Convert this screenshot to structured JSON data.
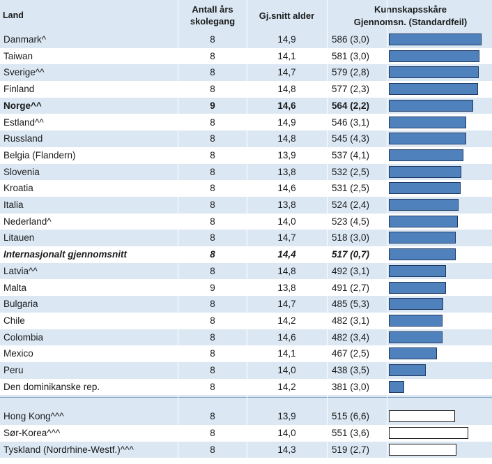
{
  "header": {
    "country": "Land",
    "years": "Antall års skolegang",
    "age": "Gj.snitt alder",
    "score_line1": "Kunnskapsskåre",
    "score_line2": "Gjennomsn. (Standardfeil)"
  },
  "chart_data": {
    "type": "table",
    "bar_scale_min": 340,
    "bar_scale_max": 595,
    "rows": [
      {
        "country": "Danmark^",
        "years": "8",
        "age": "14,9",
        "score": "586 (3,0)",
        "value": 586,
        "style": "normal",
        "bar": "filled"
      },
      {
        "country": "Taiwan",
        "years": "8",
        "age": "14,1",
        "score": "581 (3,0)",
        "value": 581,
        "style": "normal",
        "bar": "filled"
      },
      {
        "country": "Sverige^^",
        "years": "8",
        "age": "14,7",
        "score": "579 (2,8)",
        "value": 579,
        "style": "normal",
        "bar": "filled"
      },
      {
        "country": "Finland",
        "years": "8",
        "age": "14,8",
        "score": "577 (2,3)",
        "value": 577,
        "style": "normal",
        "bar": "filled"
      },
      {
        "country": "Norge^^",
        "years": "9",
        "age": "14,6",
        "score": "564 (2,2)",
        "value": 564,
        "style": "bold",
        "bar": "filled"
      },
      {
        "country": "Estland^^",
        "years": "8",
        "age": "14,9",
        "score": "546 (3,1)",
        "value": 546,
        "style": "normal",
        "bar": "filled"
      },
      {
        "country": "Russland",
        "years": "8",
        "age": "14,8",
        "score": "545 (4,3)",
        "value": 545,
        "style": "normal",
        "bar": "filled"
      },
      {
        "country": "Belgia (Flandern)",
        "years": "8",
        "age": "13,9",
        "score": "537 (4,1)",
        "value": 537,
        "style": "normal",
        "bar": "filled"
      },
      {
        "country": "Slovenia",
        "years": "8",
        "age": "13,8",
        "score": "532 (2,5)",
        "value": 532,
        "style": "normal",
        "bar": "filled"
      },
      {
        "country": "Kroatia",
        "years": "8",
        "age": "14,6",
        "score": "531 (2,5)",
        "value": 531,
        "style": "normal",
        "bar": "filled"
      },
      {
        "country": "Italia",
        "years": "8",
        "age": "13,8",
        "score": "524 (2,4)",
        "value": 524,
        "style": "normal",
        "bar": "filled"
      },
      {
        "country": "Nederland^",
        "years": "8",
        "age": "14,0",
        "score": "523 (4,5)",
        "value": 523,
        "style": "normal",
        "bar": "filled"
      },
      {
        "country": "Litauen",
        "years": "8",
        "age": "14,7",
        "score": "518 (3,0)",
        "value": 518,
        "style": "normal",
        "bar": "filled"
      },
      {
        "country": "Internasjonalt gjennomsnitt",
        "years": "8",
        "age": "14,4",
        "score": "517 (0,7)",
        "value": 517,
        "style": "bolditalic",
        "bar": "filled"
      },
      {
        "country": "Latvia^^",
        "years": "8",
        "age": "14,8",
        "score": "492 (3,1)",
        "value": 492,
        "style": "normal",
        "bar": "filled"
      },
      {
        "country": "Malta",
        "years": "9",
        "age": "13,8",
        "score": "491 (2,7)",
        "value": 491,
        "style": "normal",
        "bar": "filled"
      },
      {
        "country": "Bulgaria",
        "years": "8",
        "age": "14,7",
        "score": "485 (5,3)",
        "value": 485,
        "style": "normal",
        "bar": "filled"
      },
      {
        "country": "Chile",
        "years": "8",
        "age": "14,2",
        "score": "482 (3,1)",
        "value": 482,
        "style": "normal",
        "bar": "filled"
      },
      {
        "country": "Colombia",
        "years": "8",
        "age": "14,6",
        "score": "482 (3,4)",
        "value": 482,
        "style": "normal",
        "bar": "filled"
      },
      {
        "country": "Mexico",
        "years": "8",
        "age": "14,1",
        "score": "467 (2,5)",
        "value": 467,
        "style": "normal",
        "bar": "filled"
      },
      {
        "country": "Peru",
        "years": "8",
        "age": "14,0",
        "score": "438 (3,5)",
        "value": 438,
        "style": "normal",
        "bar": "filled"
      },
      {
        "country": "Den dominikanske rep.",
        "years": "8",
        "age": "14,2",
        "score": "381 (3,0)",
        "value": 381,
        "style": "normal",
        "bar": "filled"
      }
    ],
    "extra_rows": [
      {
        "country": "Hong Kong^^^",
        "years": "8",
        "age": "13,9",
        "score": "515 (6,6)",
        "value": 515,
        "style": "normal",
        "bar": "hollow"
      },
      {
        "country": "Sør-Korea^^^",
        "years": "8",
        "age": "14,0",
        "score": "551 (3,6)",
        "value": 551,
        "style": "normal",
        "bar": "hollow"
      },
      {
        "country": "Tyskland (Nordrhine-Westf.)^^^",
        "years": "8",
        "age": "14,3",
        "score": "519 (2,7)",
        "value": 519,
        "style": "normal",
        "bar": "hollow"
      }
    ]
  }
}
